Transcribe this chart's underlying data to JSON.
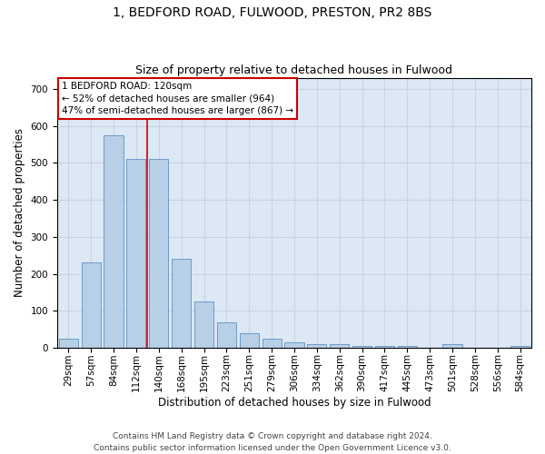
{
  "title1": "1, BEDFORD ROAD, FULWOOD, PRESTON, PR2 8BS",
  "title2": "Size of property relative to detached houses in Fulwood",
  "xlabel": "Distribution of detached houses by size in Fulwood",
  "ylabel": "Number of detached properties",
  "categories": [
    "29sqm",
    "57sqm",
    "84sqm",
    "112sqm",
    "140sqm",
    "168sqm",
    "195sqm",
    "223sqm",
    "251sqm",
    "279sqm",
    "306sqm",
    "334sqm",
    "362sqm",
    "390sqm",
    "417sqm",
    "445sqm",
    "473sqm",
    "501sqm",
    "528sqm",
    "556sqm",
    "584sqm"
  ],
  "values": [
    25,
    230,
    575,
    510,
    510,
    240,
    125,
    70,
    40,
    25,
    15,
    10,
    10,
    5,
    5,
    5,
    0,
    10,
    0,
    0,
    5
  ],
  "bar_color": "#b8cfe8",
  "bar_edge_color": "#6090c0",
  "bar_width": 0.85,
  "property_line_x": 3.5,
  "annotation_line1": "1 BEDFORD ROAD: 120sqm",
  "annotation_line2": "← 52% of detached houses are smaller (964)",
  "annotation_line3": "47% of semi-detached houses are larger (867) →",
  "annotation_box_color": "#ffffff",
  "annotation_box_edge_color": "#cc0000",
  "red_line_color": "#cc0000",
  "grid_color": "#c8d4e4",
  "background_color": "#dce8f4",
  "ylim": [
    0,
    730
  ],
  "yticks": [
    0,
    100,
    200,
    300,
    400,
    500,
    600,
    700
  ],
  "footer1": "Contains HM Land Registry data © Crown copyright and database right 2024.",
  "footer2": "Contains public sector information licensed under the Open Government Licence v3.0.",
  "title1_fontsize": 10,
  "title2_fontsize": 9,
  "xlabel_fontsize": 8.5,
  "ylabel_fontsize": 8.5,
  "tick_fontsize": 7.5,
  "annotation_fontsize": 7.5,
  "footer_fontsize": 6.5
}
